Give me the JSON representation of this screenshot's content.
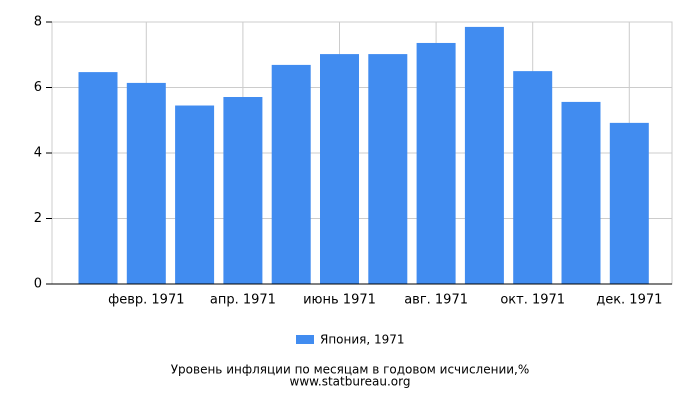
{
  "chart_data": {
    "type": "bar",
    "title": "Уровень инфляции по месяцам в годовом исчислении,%",
    "source": "www.statbureau.org",
    "categories": [
      null,
      "февр. 1971",
      null,
      "апр. 1971",
      null,
      "июнь 1971",
      null,
      "авг. 1971",
      null,
      "окт. 1971",
      null,
      "дек. 1971"
    ],
    "series": [
      {
        "name": "Япония, 1971",
        "color": "#418cf0",
        "values": [
          6.47,
          6.14,
          5.45,
          5.71,
          6.69,
          7.02,
          7.02,
          7.36,
          7.85,
          6.5,
          5.56,
          4.92
        ]
      }
    ],
    "ylim": [
      0,
      8
    ],
    "yticks": [
      0,
      2,
      4,
      6,
      8
    ],
    "grid": true,
    "legend": "bottom"
  }
}
